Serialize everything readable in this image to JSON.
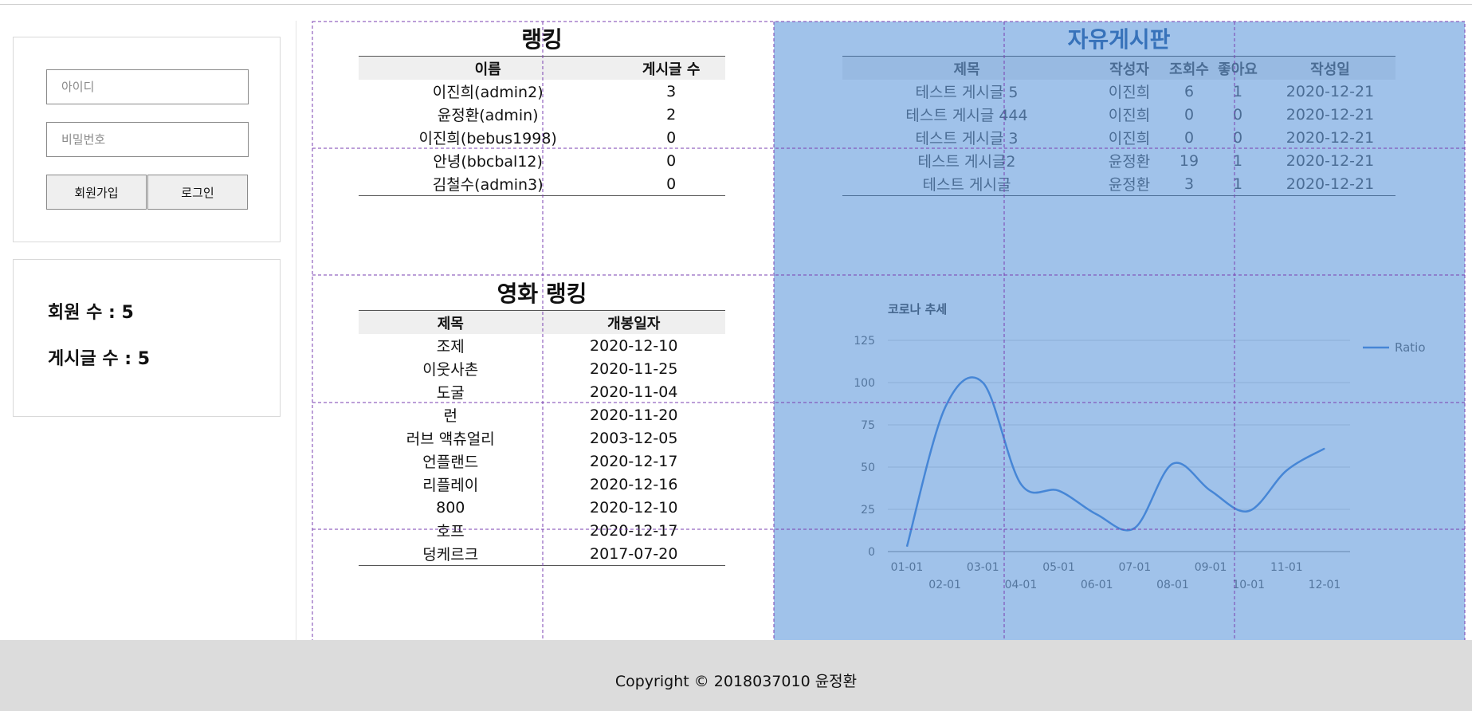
{
  "login": {
    "id_placeholder": "아이디",
    "password_placeholder": "비밀번호",
    "signup_label": "회원가입",
    "login_label": "로그인"
  },
  "stats": {
    "members": "회원 수 : 5",
    "posts": "게시글 수 : 5"
  },
  "ranking": {
    "title": "랭킹",
    "headers": [
      "이름",
      "게시글 수"
    ],
    "rows": [
      [
        "이진희(admin2)",
        "3"
      ],
      [
        "윤정환(admin)",
        "2"
      ],
      [
        "이진희(bebus1998)",
        "0"
      ],
      [
        "안녕(bbcbal12)",
        "0"
      ],
      [
        "김철수(admin3)",
        "0"
      ]
    ]
  },
  "board": {
    "title": "자유게시판",
    "headers": [
      "제목",
      "작성자",
      "조회수",
      "좋아요",
      "작성일"
    ],
    "rows": [
      [
        "테스트 게시글 5",
        "이진희",
        "6",
        "1",
        "2020-12-21"
      ],
      [
        "테스트 게시글 444",
        "이진희",
        "0",
        "0",
        "2020-12-21"
      ],
      [
        "테스트 게시글 3",
        "이진희",
        "0",
        "0",
        "2020-12-21"
      ],
      [
        "테스트 게시글2",
        "윤정환",
        "19",
        "1",
        "2020-12-21"
      ],
      [
        "테스트 게시글",
        "윤정환",
        "3",
        "1",
        "2020-12-21"
      ]
    ]
  },
  "movies": {
    "title": "영화 랭킹",
    "headers": [
      "제목",
      "개봉일자"
    ],
    "rows": [
      [
        "조제",
        "2020-12-10"
      ],
      [
        "이웃사촌",
        "2020-11-25"
      ],
      [
        "도굴",
        "2020-11-04"
      ],
      [
        "런",
        "2020-11-20"
      ],
      [
        "러브 액츄얼리",
        "2003-12-05"
      ],
      [
        "언플랜드",
        "2020-12-17"
      ],
      [
        "리플레이",
        "2020-12-16"
      ],
      [
        "800",
        "2020-12-10"
      ],
      [
        "호프",
        "2020-12-17"
      ],
      [
        "덩케르크",
        "2017-07-20"
      ]
    ]
  },
  "chart_data": {
    "type": "line",
    "title": "코로나 추세",
    "xlabel": "",
    "ylabel": "",
    "x": [
      "01-01",
      "02-01",
      "03-01",
      "04-01",
      "05-01",
      "06-01",
      "07-01",
      "08-01",
      "09-01",
      "10-01",
      "11-01",
      "12-01"
    ],
    "series": [
      {
        "name": "Ratio",
        "values": [
          3,
          85,
          100,
          40,
          36,
          22,
          14,
          52,
          36,
          24,
          48,
          61
        ]
      }
    ],
    "ylim": [
      0,
      125
    ],
    "yticks": [
      0,
      25,
      50,
      75,
      100,
      125
    ],
    "grid": true,
    "legend": "right",
    "color": "#4a86d6"
  },
  "footer": {
    "copyright": "Copyright © 2018037010 윤정환"
  },
  "colors": {
    "selection": "#4285d6",
    "guide": "#7a3fb0",
    "footer_bg": "#dcdcdc"
  }
}
